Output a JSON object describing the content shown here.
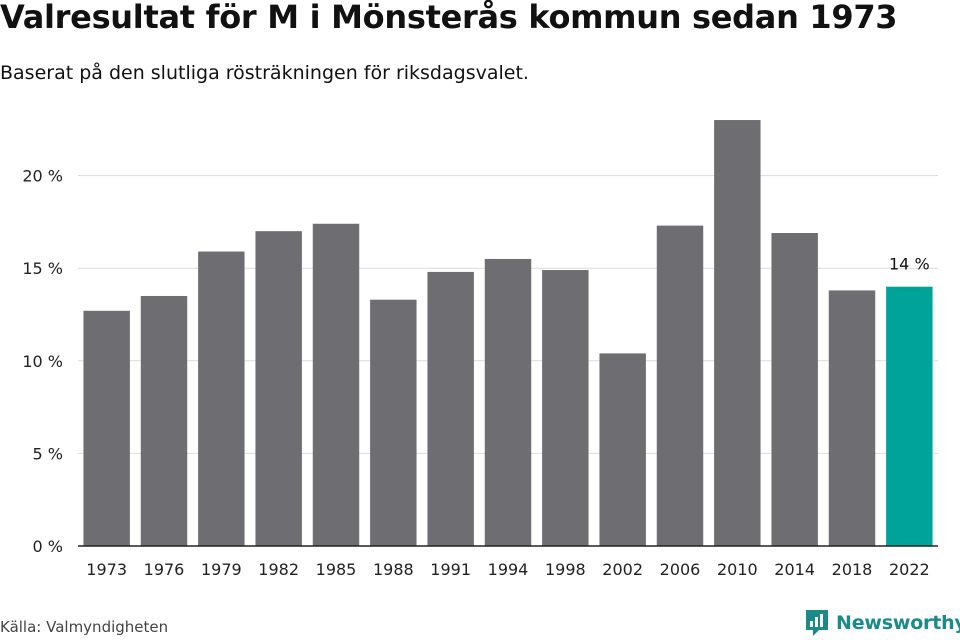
{
  "header": {
    "title": "Valresultat för M i Mönsterås kommun sedan 1973",
    "subtitle": "Baserat på den slutliga rösträkningen för riksdagsvalet."
  },
  "footer": {
    "source": "Källa: Valmyndigheten",
    "brand": "Newsworthy"
  },
  "colors": {
    "bar": "#6e6d72",
    "highlight": "#00a39a",
    "grid": "#dcdcdc",
    "axis": "#222222",
    "brand": "#1a8a8a"
  },
  "chart_data": {
    "type": "bar",
    "categories": [
      "1973",
      "1976",
      "1979",
      "1982",
      "1985",
      "1988",
      "1991",
      "1994",
      "1998",
      "2002",
      "2006",
      "2010",
      "2014",
      "2018",
      "2022"
    ],
    "values": [
      12.7,
      13.5,
      15.9,
      17.0,
      17.4,
      13.3,
      14.8,
      15.5,
      14.9,
      10.4,
      17.3,
      23.0,
      16.9,
      13.8,
      14.0
    ],
    "highlight_index": 14,
    "highlight_label": "14 %",
    "ylim": [
      0,
      25
    ],
    "yticks": [
      0,
      5,
      10,
      15,
      20
    ],
    "ytick_labels": [
      "0 %",
      "5 %",
      "10 %",
      "15 %",
      "20 %"
    ],
    "grid": true
  }
}
